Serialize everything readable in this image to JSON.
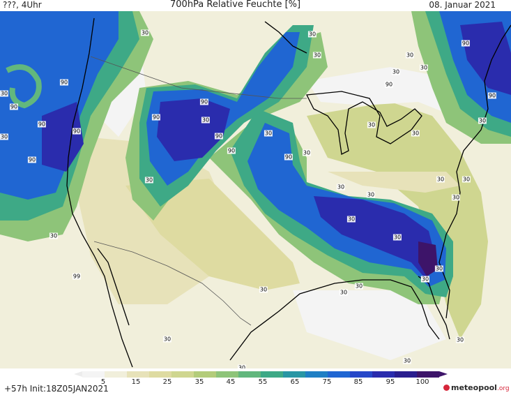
{
  "header": {
    "left_label": "???, 4Uhr",
    "title": "700hPa Relative Feuchte [%]",
    "date": "08. Januar 2021"
  },
  "map": {
    "region": "North America (United States)",
    "variable": "700hPa relative humidity",
    "contour_labels": [
      "90",
      "30",
      "30",
      "30",
      "30",
      "90",
      "90",
      "90",
      "90",
      "90",
      "90",
      "90",
      "90",
      "90",
      "90",
      "90",
      "90",
      "30",
      "30",
      "30",
      "30",
      "30",
      "30",
      "30",
      "30",
      "30",
      "30",
      "30",
      "30",
      "30",
      "30",
      "30",
      "30",
      "30",
      "30",
      "30",
      "30",
      "30",
      "30",
      "30",
      "30",
      "30",
      "30",
      "30",
      "30",
      "99",
      "30"
    ],
    "contour_label_count": 47
  },
  "legend": {
    "ticks": [
      "5",
      "15",
      "25",
      "35",
      "45",
      "55",
      "65",
      "75",
      "85",
      "95",
      "100"
    ],
    "colors": [
      "#f4f4f4",
      "#f1efdb",
      "#e7e2b9",
      "#dedba1",
      "#cfd690",
      "#b3cc7a",
      "#8ec479",
      "#62b77d",
      "#3ea986",
      "#2996a4",
      "#1f7fc4",
      "#2066d2",
      "#2647c8",
      "#2a2cad",
      "#2a1e8e",
      "#3d1469"
    ]
  },
  "footer": {
    "lead_time": "+57h",
    "init": "Init:18Z05JAN2021"
  },
  "logo": {
    "name": "meteopool",
    "domain": ".org"
  }
}
